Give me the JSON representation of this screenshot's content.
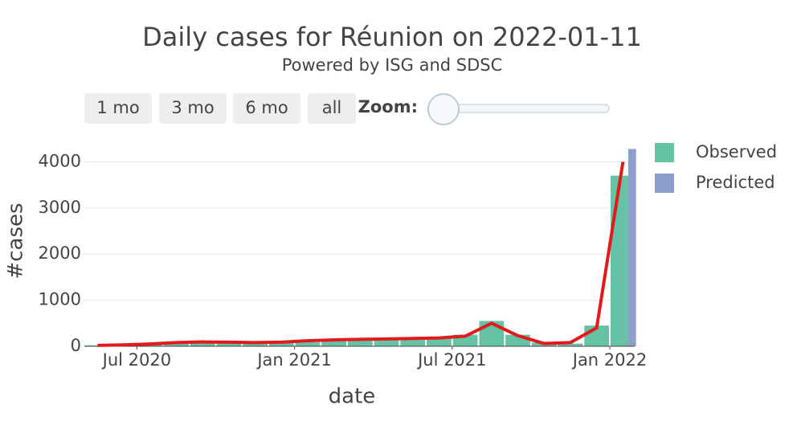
{
  "chart_data": {
    "type": "bar",
    "title": "Daily cases for Réunion on 2022-01-11",
    "subtitle": "Powered by ISG and SDSC",
    "buttons": [
      "1 mo",
      "3 mo",
      "6 mo",
      "all"
    ],
    "zoom_label": "Zoom:",
    "x_label": "date",
    "y_label": "#cases",
    "x": [
      "2020-05",
      "2020-06",
      "2020-07",
      "2020-08",
      "2020-09",
      "2020-10",
      "2020-11",
      "2020-12",
      "2021-01",
      "2021-02",
      "2021-03",
      "2021-04",
      "2021-05",
      "2021-06",
      "2021-07",
      "2021-08",
      "2021-09",
      "2021-10",
      "2021-11",
      "2021-12",
      "2022-01"
    ],
    "xticks": [
      {
        "value": "2020-07",
        "label": "Jul 2020"
      },
      {
        "value": "2021-01",
        "label": "Jan 2021"
      },
      {
        "value": "2021-07",
        "label": "Jul 2021"
      },
      {
        "value": "2022-01",
        "label": "Jan 2022"
      }
    ],
    "ylim": [
      0,
      4200
    ],
    "yticks": [
      0,
      1000,
      2000,
      3000,
      4000
    ],
    "grid": true,
    "series": [
      {
        "name": "Observed",
        "color": "#66c2a5",
        "values": [
          20,
          30,
          40,
          70,
          100,
          90,
          80,
          90,
          90,
          130,
          150,
          150,
          170,
          180,
          250,
          550,
          250,
          80,
          60,
          450,
          3700
        ]
      },
      {
        "name": "Predicted",
        "color": "#8da0cb",
        "values": [
          null,
          null,
          null,
          null,
          null,
          null,
          null,
          null,
          null,
          null,
          null,
          null,
          null,
          null,
          null,
          null,
          null,
          null,
          null,
          null,
          4280
        ]
      },
      {
        "type": "line",
        "color": "#e31a1c",
        "values": [
          20,
          30,
          50,
          80,
          95,
          90,
          80,
          90,
          120,
          140,
          150,
          160,
          170,
          180,
          220,
          500,
          230,
          60,
          80,
          400,
          4000
        ]
      }
    ]
  }
}
